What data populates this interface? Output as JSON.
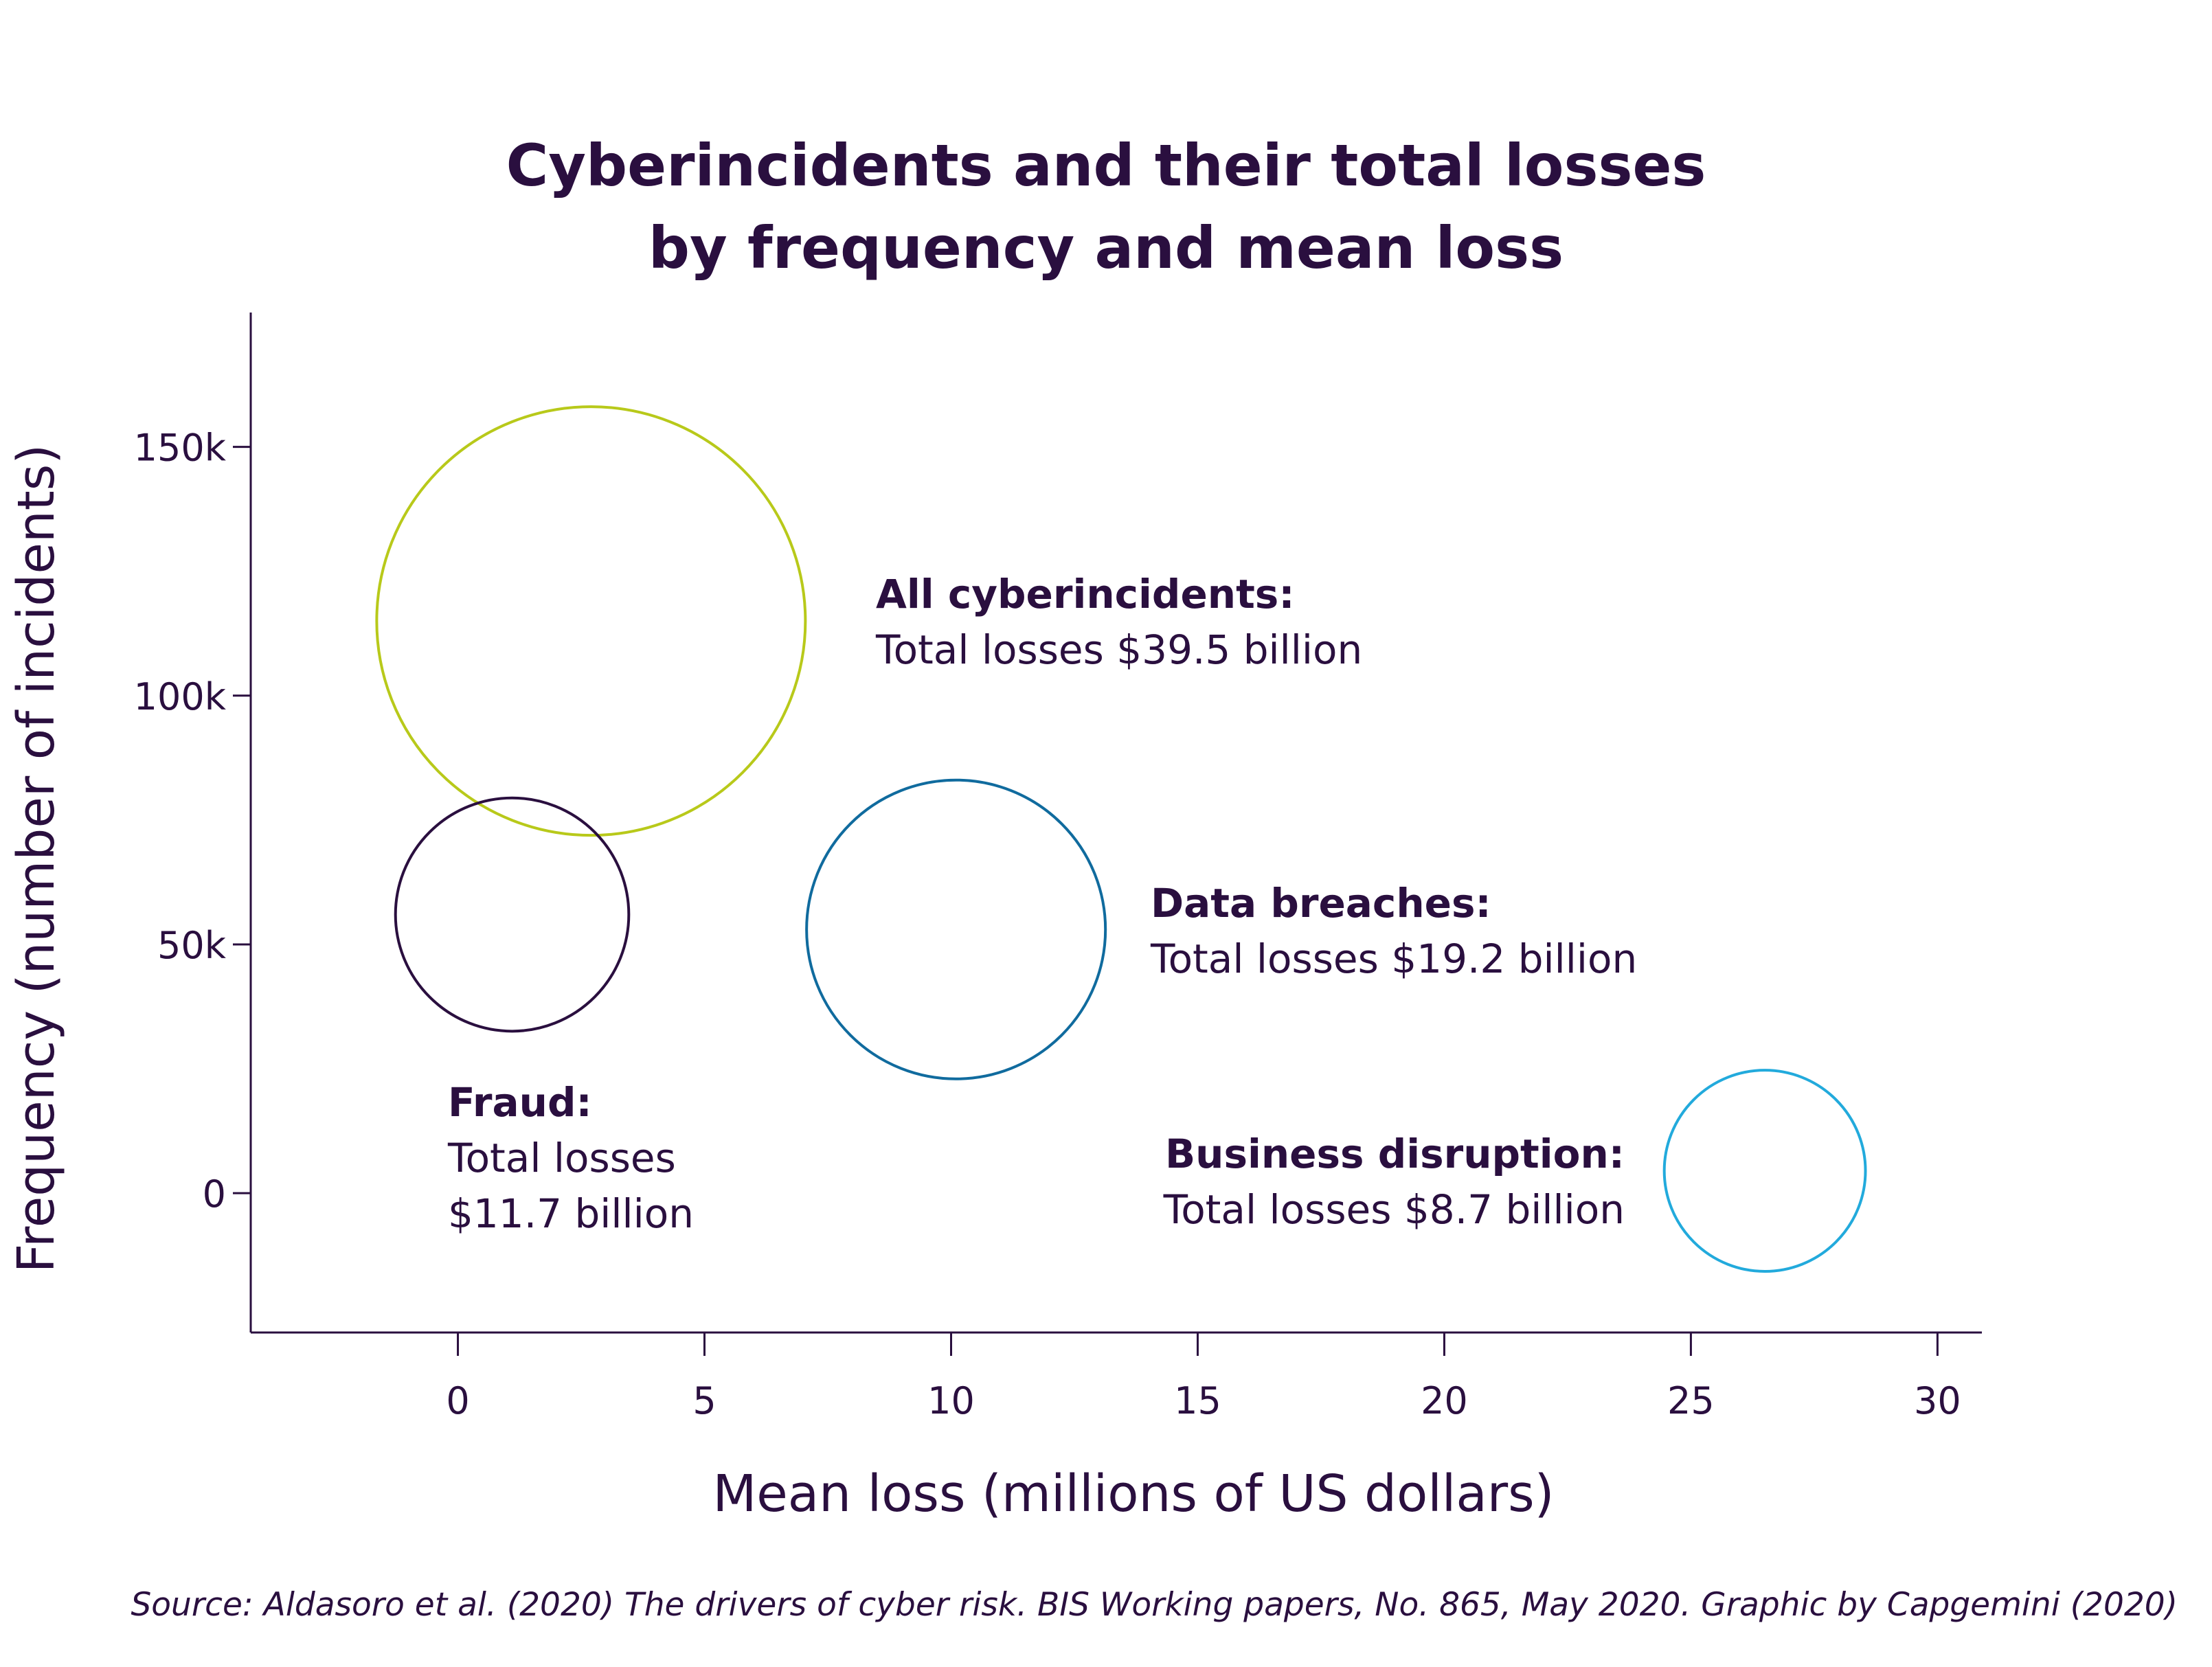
{
  "chart_data": {
    "type": "bubble",
    "title_lines": [
      "Cyberincidents and their total losses",
      "by frequency and mean loss"
    ],
    "xlabel": "Mean loss (millions of US dollars)",
    "ylabel": "Frequency (number of incidents)",
    "xlim": [
      -4.2,
      30.9
    ],
    "ylim": [
      -28000,
      177000
    ],
    "x_ticks": [
      {
        "value": 0,
        "label": "0"
      },
      {
        "value": 5,
        "label": "5"
      },
      {
        "value": 10,
        "label": "10"
      },
      {
        "value": 15,
        "label": "15"
      },
      {
        "value": 20,
        "label": "20"
      },
      {
        "value": 25,
        "label": "25"
      },
      {
        "value": 30,
        "label": "30"
      }
    ],
    "y_ticks": [
      {
        "value": 0,
        "label": "0"
      },
      {
        "value": 50000,
        "label": "50k"
      },
      {
        "value": 100000,
        "label": "100k"
      },
      {
        "value": 150000,
        "label": "150k"
      }
    ],
    "grid": false,
    "legend": "none",
    "series": [
      {
        "id": "all-cyberincidents",
        "x": 2.7,
        "y": 115000,
        "total_losses_billion": 39.5,
        "color": "#b8c91a",
        "label_lines": [
          "All cyberincidents:",
          "Total losses $39.5 billion"
        ]
      },
      {
        "id": "data-breaches",
        "x": 10.1,
        "y": 53000,
        "total_losses_billion": 19.2,
        "color": "#106b9e",
        "label_lines": [
          "Data breaches:",
          "Total losses $19.2 billion"
        ]
      },
      {
        "id": "fraud",
        "x": 1.1,
        "y": 56000,
        "total_losses_billion": 11.7,
        "color": "#2a0f3f",
        "label_lines": [
          "Fraud:",
          "Total losses",
          "$11.7 billion"
        ]
      },
      {
        "id": "business-disruption",
        "x": 26.5,
        "y": 4500,
        "total_losses_billion": 8.7,
        "color": "#22aadc",
        "label_lines": [
          "Business disruption:",
          "Total losses $8.7 billion"
        ]
      }
    ],
    "source": "Source: Aldasoro et al. (2020) The drivers of cyber risk. BIS Working papers, No. 865, May 2020. Graphic by Capgemini (2020)"
  }
}
